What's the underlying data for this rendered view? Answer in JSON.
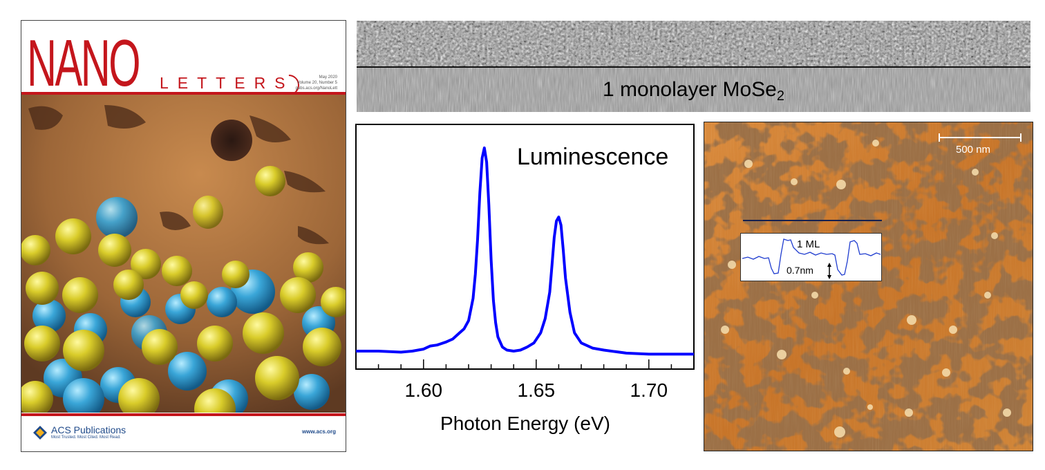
{
  "cover": {
    "journal_word1": "NANO",
    "journal_word2": "LETTERS",
    "issue_lines": [
      "May 2020",
      "Volume 20, Number 5",
      "pubs.acs.org/NanoLett"
    ],
    "publisher": "ACS Publications",
    "publisher_tagline": "Most Trusted. Most Cited. Most Read.",
    "website": "www.acs.org",
    "accent_color": "#c4161c"
  },
  "tem": {
    "label_prefix": "1 monolayer MoSe",
    "label_subscript": "2"
  },
  "chart_data": {
    "type": "line",
    "annotation": "Luminescence",
    "xlabel": "Photon Energy (eV)",
    "ylabel": "",
    "xlim": [
      1.57,
      1.72
    ],
    "ylim": [
      0,
      1.05
    ],
    "x_ticks": [
      "1.60",
      "1.65",
      "1.70"
    ],
    "x_tick_values": [
      1.6,
      1.65,
      1.7
    ],
    "series_color": "#0000ff",
    "x": [
      1.57,
      1.58,
      1.59,
      1.595,
      1.6,
      1.603,
      1.606,
      1.61,
      1.613,
      1.616,
      1.618,
      1.62,
      1.622,
      1.623,
      1.624,
      1.625,
      1.626,
      1.627,
      1.628,
      1.629,
      1.63,
      1.631,
      1.632,
      1.633,
      1.635,
      1.637,
      1.64,
      1.643,
      1.646,
      1.649,
      1.652,
      1.654,
      1.656,
      1.657,
      1.658,
      1.659,
      1.66,
      1.661,
      1.662,
      1.663,
      1.665,
      1.667,
      1.67,
      1.675,
      1.68,
      1.69,
      1.7,
      1.71,
      1.72
    ],
    "y": [
      0.0,
      0.0,
      -0.005,
      0.0,
      0.01,
      0.025,
      0.03,
      0.045,
      0.06,
      0.09,
      0.11,
      0.15,
      0.26,
      0.38,
      0.55,
      0.78,
      0.95,
      1.0,
      0.93,
      0.72,
      0.45,
      0.25,
      0.14,
      0.07,
      0.02,
      0.005,
      0.0,
      0.005,
      0.02,
      0.04,
      0.09,
      0.16,
      0.29,
      0.42,
      0.56,
      0.64,
      0.66,
      0.62,
      0.5,
      0.36,
      0.19,
      0.09,
      0.04,
      0.015,
      0.005,
      -0.01,
      -0.015,
      -0.015,
      -0.015
    ]
  },
  "stm": {
    "scale_bar_label": "500 nm",
    "profile_label": "1 ML",
    "step_height_label": "0.7nm"
  }
}
